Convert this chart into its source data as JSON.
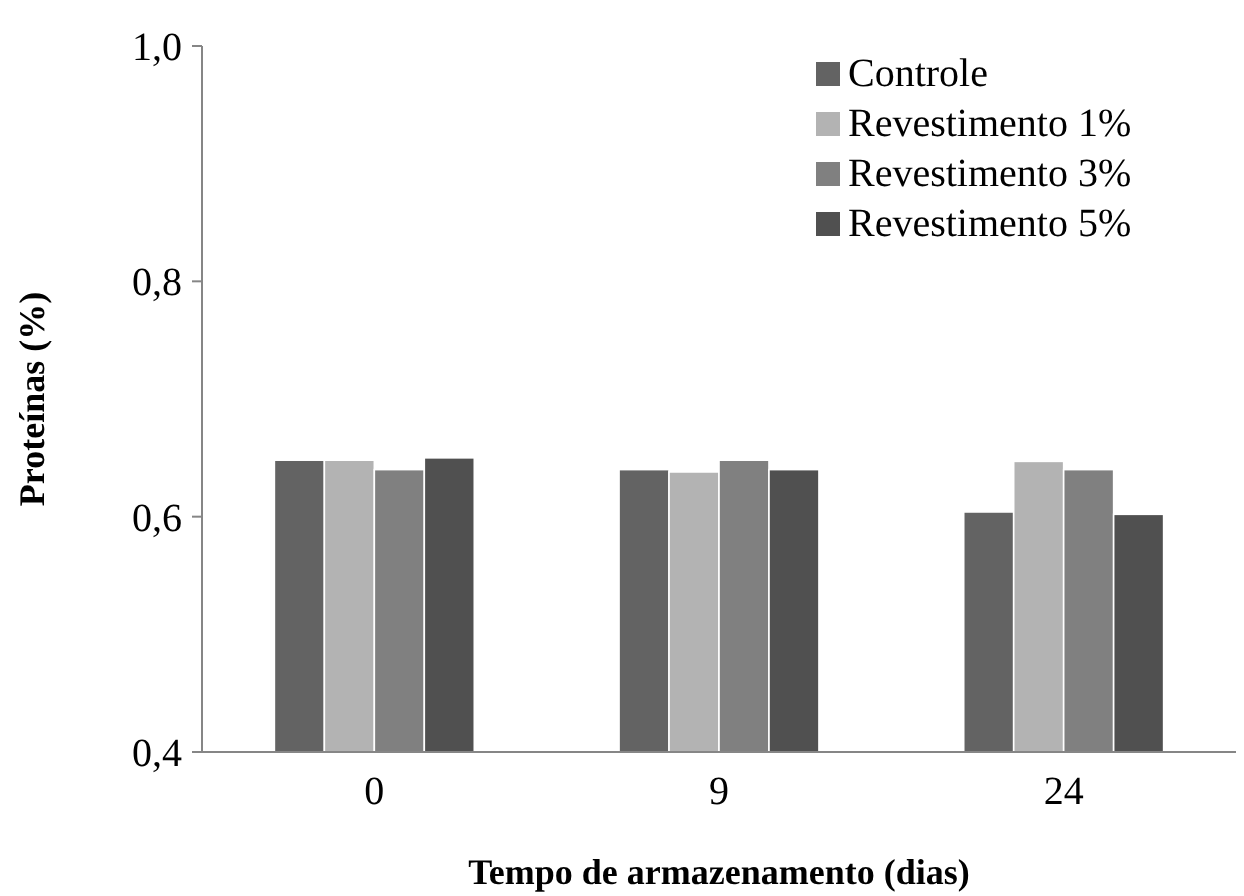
{
  "chart_data": {
    "type": "bar",
    "xlabel": "Tempo de armazenamento (dias)",
    "ylabel": "Proteínas (%)",
    "categories": [
      "0",
      "9",
      "24"
    ],
    "series": [
      {
        "name": "Controle",
        "color": "#636363",
        "values": [
          0.648,
          0.64,
          0.604
        ]
      },
      {
        "name": "Revestimento 1%",
        "color": "#b3b3b3",
        "values": [
          0.648,
          0.638,
          0.647
        ]
      },
      {
        "name": "Revestimento 3%",
        "color": "#808080",
        "values": [
          0.64,
          0.648,
          0.64
        ]
      },
      {
        "name": "Revestimento 5%",
        "color": "#505050",
        "values": [
          0.65,
          0.64,
          0.602
        ]
      }
    ],
    "ylim": [
      0.4,
      1.0
    ],
    "yticks": [
      {
        "value": 0.4,
        "label": "0,4"
      },
      {
        "value": 0.6,
        "label": "0,6"
      },
      {
        "value": 0.8,
        "label": "0,8"
      },
      {
        "value": 1.0,
        "label": "1,0"
      }
    ],
    "grid": false,
    "legend": "top right"
  }
}
